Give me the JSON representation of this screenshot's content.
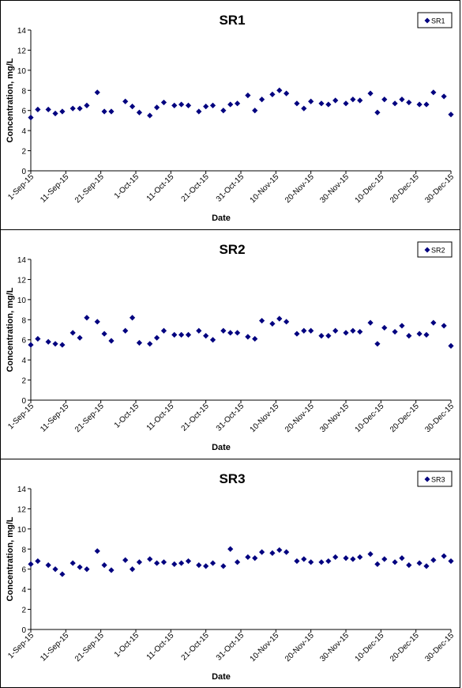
{
  "colors": {
    "marker": "#00007f",
    "axis": "#000000",
    "background": "#ffffff"
  },
  "chart_data": [
    {
      "type": "scatter",
      "title": "SR1",
      "xlabel": "Date",
      "ylabel": "Concentration, mg/L",
      "ylim": [
        0,
        14
      ],
      "yticks": [
        0,
        2,
        4,
        6,
        8,
        10,
        12,
        14
      ],
      "xlim": [
        "2015-09-01",
        "2015-12-30"
      ],
      "xtick_labels": [
        "1-Sep-15",
        "11-Sep-15",
        "21-Sep-15",
        "1-Oct-15",
        "11-Oct-15",
        "21-Oct-15",
        "31-Oct-15",
        "10-Nov-15",
        "20-Nov-15",
        "30-Nov-15",
        "10-Dec-15",
        "20-Dec-15",
        "30-Dec-15"
      ],
      "grid": false,
      "legend": {
        "position": "top-right",
        "entries": [
          "SR1"
        ]
      },
      "series": [
        {
          "name": "SR1",
          "x": [
            "2015-09-01",
            "2015-09-03",
            "2015-09-06",
            "2015-09-08",
            "2015-09-10",
            "2015-09-13",
            "2015-09-15",
            "2015-09-17",
            "2015-09-20",
            "2015-09-22",
            "2015-09-24",
            "2015-09-28",
            "2015-09-30",
            "2015-10-02",
            "2015-10-05",
            "2015-10-07",
            "2015-10-09",
            "2015-10-12",
            "2015-10-14",
            "2015-10-16",
            "2015-10-19",
            "2015-10-21",
            "2015-10-23",
            "2015-10-26",
            "2015-10-28",
            "2015-10-30",
            "2015-11-02",
            "2015-11-04",
            "2015-11-06",
            "2015-11-09",
            "2015-11-11",
            "2015-11-13",
            "2015-11-16",
            "2015-11-18",
            "2015-11-20",
            "2015-11-23",
            "2015-11-25",
            "2015-11-27",
            "2015-11-30",
            "2015-12-02",
            "2015-12-04",
            "2015-12-07",
            "2015-12-09",
            "2015-12-11",
            "2015-12-14",
            "2015-12-16",
            "2015-12-18",
            "2015-12-21",
            "2015-12-23",
            "2015-12-25",
            "2015-12-28",
            "2015-12-30"
          ],
          "y": [
            5.3,
            6.1,
            6.1,
            5.7,
            5.9,
            6.2,
            6.2,
            6.5,
            7.8,
            5.9,
            5.9,
            6.9,
            6.4,
            5.8,
            5.5,
            6.3,
            6.8,
            6.5,
            6.6,
            6.5,
            5.9,
            6.4,
            6.5,
            6.0,
            6.6,
            6.7,
            7.5,
            6.0,
            7.1,
            7.6,
            8.0,
            7.7,
            6.7,
            6.2,
            6.9,
            6.7,
            6.6,
            7.0,
            6.7,
            7.1,
            7.0,
            7.7,
            5.8,
            7.1,
            6.7,
            7.1,
            6.8,
            6.6,
            6.6,
            7.8,
            7.4,
            5.6
          ]
        }
      ]
    },
    {
      "type": "scatter",
      "title": "SR2",
      "xlabel": "Date",
      "ylabel": "Concentration, mg/L",
      "ylim": [
        0,
        14
      ],
      "yticks": [
        0,
        2,
        4,
        6,
        8,
        10,
        12,
        14
      ],
      "xlim": [
        "2015-09-01",
        "2015-12-30"
      ],
      "xtick_labels": [
        "1-Sep-15",
        "11-Sep-15",
        "21-Sep-15",
        "1-Oct-15",
        "11-Oct-15",
        "21-Oct-15",
        "31-Oct-15",
        "10-Nov-15",
        "20-Nov-15",
        "30-Nov-15",
        "10-Dec-15",
        "20-Dec-15",
        "30-Dec-15"
      ],
      "grid": false,
      "legend": {
        "position": "top-right",
        "entries": [
          "SR2"
        ]
      },
      "series": [
        {
          "name": "SR2",
          "x": [
            "2015-09-01",
            "2015-09-03",
            "2015-09-06",
            "2015-09-08",
            "2015-09-10",
            "2015-09-13",
            "2015-09-15",
            "2015-09-17",
            "2015-09-20",
            "2015-09-22",
            "2015-09-24",
            "2015-09-28",
            "2015-09-30",
            "2015-10-02",
            "2015-10-05",
            "2015-10-07",
            "2015-10-09",
            "2015-10-12",
            "2015-10-14",
            "2015-10-16",
            "2015-10-19",
            "2015-10-21",
            "2015-10-23",
            "2015-10-26",
            "2015-10-28",
            "2015-10-30",
            "2015-11-02",
            "2015-11-04",
            "2015-11-06",
            "2015-11-09",
            "2015-11-11",
            "2015-11-13",
            "2015-11-16",
            "2015-11-18",
            "2015-11-20",
            "2015-11-23",
            "2015-11-25",
            "2015-11-27",
            "2015-11-30",
            "2015-12-02",
            "2015-12-04",
            "2015-12-07",
            "2015-12-09",
            "2015-12-11",
            "2015-12-14",
            "2015-12-16",
            "2015-12-18",
            "2015-12-21",
            "2015-12-23",
            "2015-12-25",
            "2015-12-28",
            "2015-12-30"
          ],
          "y": [
            5.5,
            6.1,
            5.8,
            5.6,
            5.5,
            6.7,
            6.2,
            8.2,
            7.8,
            6.6,
            5.9,
            6.9,
            8.2,
            5.7,
            5.6,
            6.2,
            6.9,
            6.5,
            6.5,
            6.5,
            6.9,
            6.4,
            6.0,
            6.9,
            6.7,
            6.7,
            6.3,
            6.1,
            7.9,
            7.6,
            8.1,
            7.8,
            6.6,
            6.9,
            6.9,
            6.4,
            6.4,
            6.9,
            6.7,
            6.9,
            6.8,
            7.7,
            5.6,
            7.2,
            6.8,
            7.4,
            6.4,
            6.6,
            6.5,
            7.7,
            7.4,
            5.4
          ]
        }
      ]
    },
    {
      "type": "scatter",
      "title": "SR3",
      "xlabel": "Date",
      "ylabel": "Concentration, mg/L",
      "ylim": [
        0,
        14
      ],
      "yticks": [
        0,
        2,
        4,
        6,
        8,
        10,
        12,
        14
      ],
      "xlim": [
        "2015-09-01",
        "2015-12-30"
      ],
      "xtick_labels": [
        "1-Sep-15",
        "11-Sep-15",
        "21-Sep-15",
        "1-Oct-15",
        "11-Oct-15",
        "21-Oct-15",
        "31-Oct-15",
        "10-Nov-15",
        "20-Nov-15",
        "30-Nov-15",
        "10-Dec-15",
        "20-Dec-15",
        "30-Dec-15"
      ],
      "grid": false,
      "legend": {
        "position": "top-right",
        "entries": [
          "SR3"
        ]
      },
      "series": [
        {
          "name": "SR3",
          "x": [
            "2015-09-01",
            "2015-09-03",
            "2015-09-06",
            "2015-09-08",
            "2015-09-10",
            "2015-09-13",
            "2015-09-15",
            "2015-09-17",
            "2015-09-20",
            "2015-09-22",
            "2015-09-24",
            "2015-09-28",
            "2015-09-30",
            "2015-10-02",
            "2015-10-05",
            "2015-10-07",
            "2015-10-09",
            "2015-10-12",
            "2015-10-14",
            "2015-10-16",
            "2015-10-19",
            "2015-10-21",
            "2015-10-23",
            "2015-10-26",
            "2015-10-28",
            "2015-10-30",
            "2015-11-02",
            "2015-11-04",
            "2015-11-06",
            "2015-11-09",
            "2015-11-11",
            "2015-11-13",
            "2015-11-16",
            "2015-11-18",
            "2015-11-20",
            "2015-11-23",
            "2015-11-25",
            "2015-11-27",
            "2015-11-30",
            "2015-12-02",
            "2015-12-04",
            "2015-12-07",
            "2015-12-09",
            "2015-12-11",
            "2015-12-14",
            "2015-12-16",
            "2015-12-18",
            "2015-12-21",
            "2015-12-23",
            "2015-12-25",
            "2015-12-28",
            "2015-12-30"
          ],
          "y": [
            6.5,
            6.8,
            6.4,
            6.0,
            5.5,
            6.6,
            6.2,
            6.0,
            7.8,
            6.4,
            5.9,
            6.9,
            6.0,
            6.7,
            7.0,
            6.6,
            6.7,
            6.5,
            6.6,
            6.8,
            6.4,
            6.3,
            6.6,
            6.3,
            8.0,
            6.7,
            7.2,
            7.1,
            7.7,
            7.6,
            7.9,
            7.7,
            6.8,
            7.0,
            6.7,
            6.7,
            6.8,
            7.2,
            7.1,
            7.0,
            7.2,
            7.5,
            6.5,
            7.0,
            6.7,
            7.1,
            6.4,
            6.6,
            6.3,
            6.9,
            7.3,
            6.8
          ]
        }
      ]
    }
  ]
}
